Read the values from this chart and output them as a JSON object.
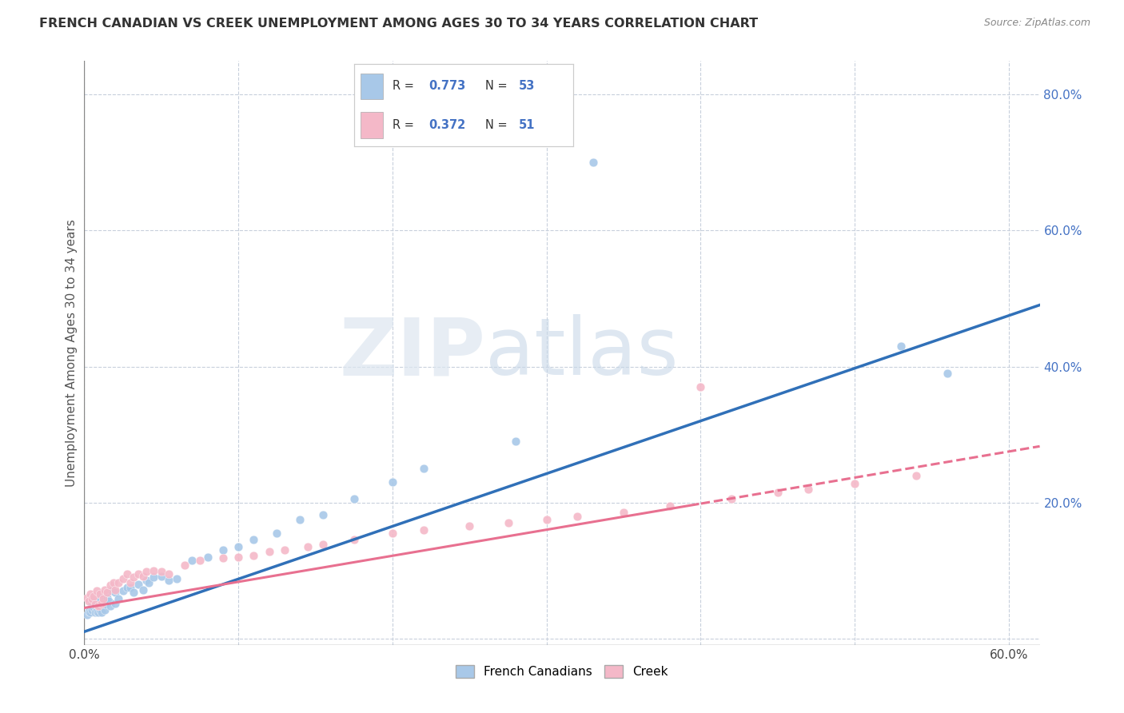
{
  "title": "FRENCH CANADIAN VS CREEK UNEMPLOYMENT AMONG AGES 30 TO 34 YEARS CORRELATION CHART",
  "source": "Source: ZipAtlas.com",
  "ylabel": "Unemployment Among Ages 30 to 34 years",
  "xlim": [
    0.0,
    0.62
  ],
  "ylim": [
    -0.01,
    0.85
  ],
  "xtick_positions": [
    0.0,
    0.1,
    0.2,
    0.3,
    0.4,
    0.5,
    0.6
  ],
  "xticklabels": [
    "0.0%",
    "",
    "",
    "",
    "",
    "",
    "60.0%"
  ],
  "yticks_right": [
    0.0,
    0.2,
    0.4,
    0.6,
    0.8
  ],
  "yticklabels_right": [
    "",
    "20.0%",
    "40.0%",
    "60.0%",
    "80.0%"
  ],
  "blue_R": 0.773,
  "blue_N": 53,
  "pink_R": 0.372,
  "pink_N": 51,
  "blue_color": "#a8c8e8",
  "pink_color": "#f4b8c8",
  "blue_line_color": "#3070b8",
  "pink_line_color": "#e87090",
  "legend_label_blue": "French Canadians",
  "legend_label_pink": "Creek",
  "blue_line_x0": 0.0,
  "blue_line_y0": 0.01,
  "blue_line_x1": 0.6,
  "blue_line_y1": 0.475,
  "pink_line_x0": 0.0,
  "pink_line_y0": 0.045,
  "pink_line_x1": 0.6,
  "pink_line_y1": 0.275,
  "blue_x": [
    0.002,
    0.003,
    0.004,
    0.005,
    0.005,
    0.006,
    0.006,
    0.007,
    0.007,
    0.008,
    0.008,
    0.009,
    0.01,
    0.01,
    0.01,
    0.011,
    0.012,
    0.013,
    0.014,
    0.015,
    0.016,
    0.017,
    0.018,
    0.02,
    0.02,
    0.022,
    0.025,
    0.028,
    0.03,
    0.032,
    0.035,
    0.038,
    0.04,
    0.042,
    0.045,
    0.05,
    0.055,
    0.06,
    0.07,
    0.08,
    0.09,
    0.1,
    0.11,
    0.125,
    0.14,
    0.155,
    0.175,
    0.2,
    0.22,
    0.28,
    0.33,
    0.53,
    0.56
  ],
  "blue_y": [
    0.035,
    0.04,
    0.038,
    0.042,
    0.05,
    0.045,
    0.055,
    0.038,
    0.048,
    0.04,
    0.052,
    0.038,
    0.042,
    0.048,
    0.06,
    0.038,
    0.055,
    0.042,
    0.05,
    0.06,
    0.055,
    0.048,
    0.07,
    0.052,
    0.068,
    0.058,
    0.07,
    0.075,
    0.075,
    0.068,
    0.08,
    0.072,
    0.085,
    0.082,
    0.09,
    0.092,
    0.085,
    0.088,
    0.115,
    0.12,
    0.13,
    0.135,
    0.145,
    0.155,
    0.175,
    0.182,
    0.205,
    0.23,
    0.25,
    0.29,
    0.7,
    0.43,
    0.39
  ],
  "pink_x": [
    0.002,
    0.003,
    0.004,
    0.005,
    0.006,
    0.007,
    0.008,
    0.009,
    0.01,
    0.011,
    0.012,
    0.013,
    0.015,
    0.017,
    0.019,
    0.02,
    0.022,
    0.025,
    0.028,
    0.03,
    0.032,
    0.035,
    0.038,
    0.04,
    0.045,
    0.05,
    0.055,
    0.065,
    0.075,
    0.09,
    0.1,
    0.11,
    0.12,
    0.13,
    0.145,
    0.155,
    0.175,
    0.2,
    0.22,
    0.25,
    0.275,
    0.3,
    0.32,
    0.35,
    0.38,
    0.4,
    0.42,
    0.45,
    0.47,
    0.5,
    0.54
  ],
  "pink_y": [
    0.06,
    0.055,
    0.065,
    0.058,
    0.062,
    0.05,
    0.07,
    0.048,
    0.065,
    0.052,
    0.058,
    0.072,
    0.068,
    0.078,
    0.082,
    0.072,
    0.082,
    0.088,
    0.095,
    0.082,
    0.09,
    0.095,
    0.092,
    0.098,
    0.1,
    0.098,
    0.095,
    0.108,
    0.115,
    0.118,
    0.12,
    0.122,
    0.128,
    0.13,
    0.135,
    0.138,
    0.145,
    0.155,
    0.16,
    0.165,
    0.17,
    0.175,
    0.18,
    0.185,
    0.195,
    0.37,
    0.205,
    0.215,
    0.22,
    0.228,
    0.24
  ]
}
